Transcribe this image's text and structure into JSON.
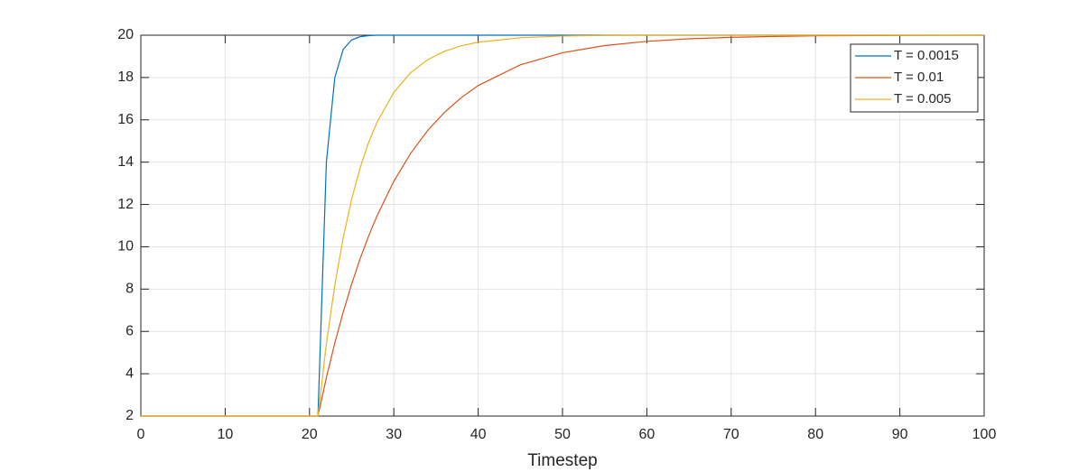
{
  "chart_data": {
    "type": "line",
    "xlabel": "Timestep",
    "x": [
      0,
      5,
      10,
      15,
      20,
      21,
      22,
      23,
      24,
      25,
      26,
      27,
      28,
      30,
      32,
      34,
      36,
      38,
      40,
      45,
      50,
      55,
      60,
      65,
      70,
      75,
      80,
      90,
      100
    ],
    "series": [
      {
        "name": "T = 0.0015",
        "color": "#0072BD",
        "values": [
          2,
          2,
          2,
          2,
          2,
          2,
          14,
          18,
          19.33,
          19.78,
          19.93,
          19.98,
          20,
          20,
          20,
          20,
          20,
          20,
          20,
          20,
          20,
          20,
          20,
          20,
          20,
          20,
          20,
          20,
          20
        ]
      },
      {
        "name": "T = 0.01",
        "color": "#D95319",
        "values": [
          2,
          2,
          2,
          2,
          2,
          2,
          3.82,
          5.45,
          6.92,
          8.24,
          9.43,
          10.5,
          11.46,
          13.1,
          14.42,
          15.49,
          16.35,
          17.05,
          17.62,
          18.6,
          19.17,
          19.51,
          19.71,
          19.83,
          19.9,
          19.94,
          19.97,
          19.99,
          20
        ]
      },
      {
        "name": "T = 0.005",
        "color": "#EDB120",
        "values": [
          2,
          2,
          2,
          2,
          2,
          2,
          5.42,
          8.19,
          10.43,
          12.25,
          13.72,
          14.92,
          15.88,
          17.3,
          18.23,
          18.84,
          19.24,
          19.5,
          19.67,
          19.88,
          19.96,
          19.99,
          20,
          20,
          20,
          20,
          20,
          20,
          20
        ]
      }
    ],
    "xlim": [
      0,
      100
    ],
    "xticks": [
      0,
      10,
      20,
      30,
      40,
      50,
      60,
      70,
      80,
      90,
      100
    ],
    "ylim": [
      2,
      20
    ],
    "yticks": [
      2,
      4,
      6,
      8,
      10,
      12,
      14,
      16,
      18,
      20
    ],
    "grid": true,
    "legend": "northeast"
  }
}
